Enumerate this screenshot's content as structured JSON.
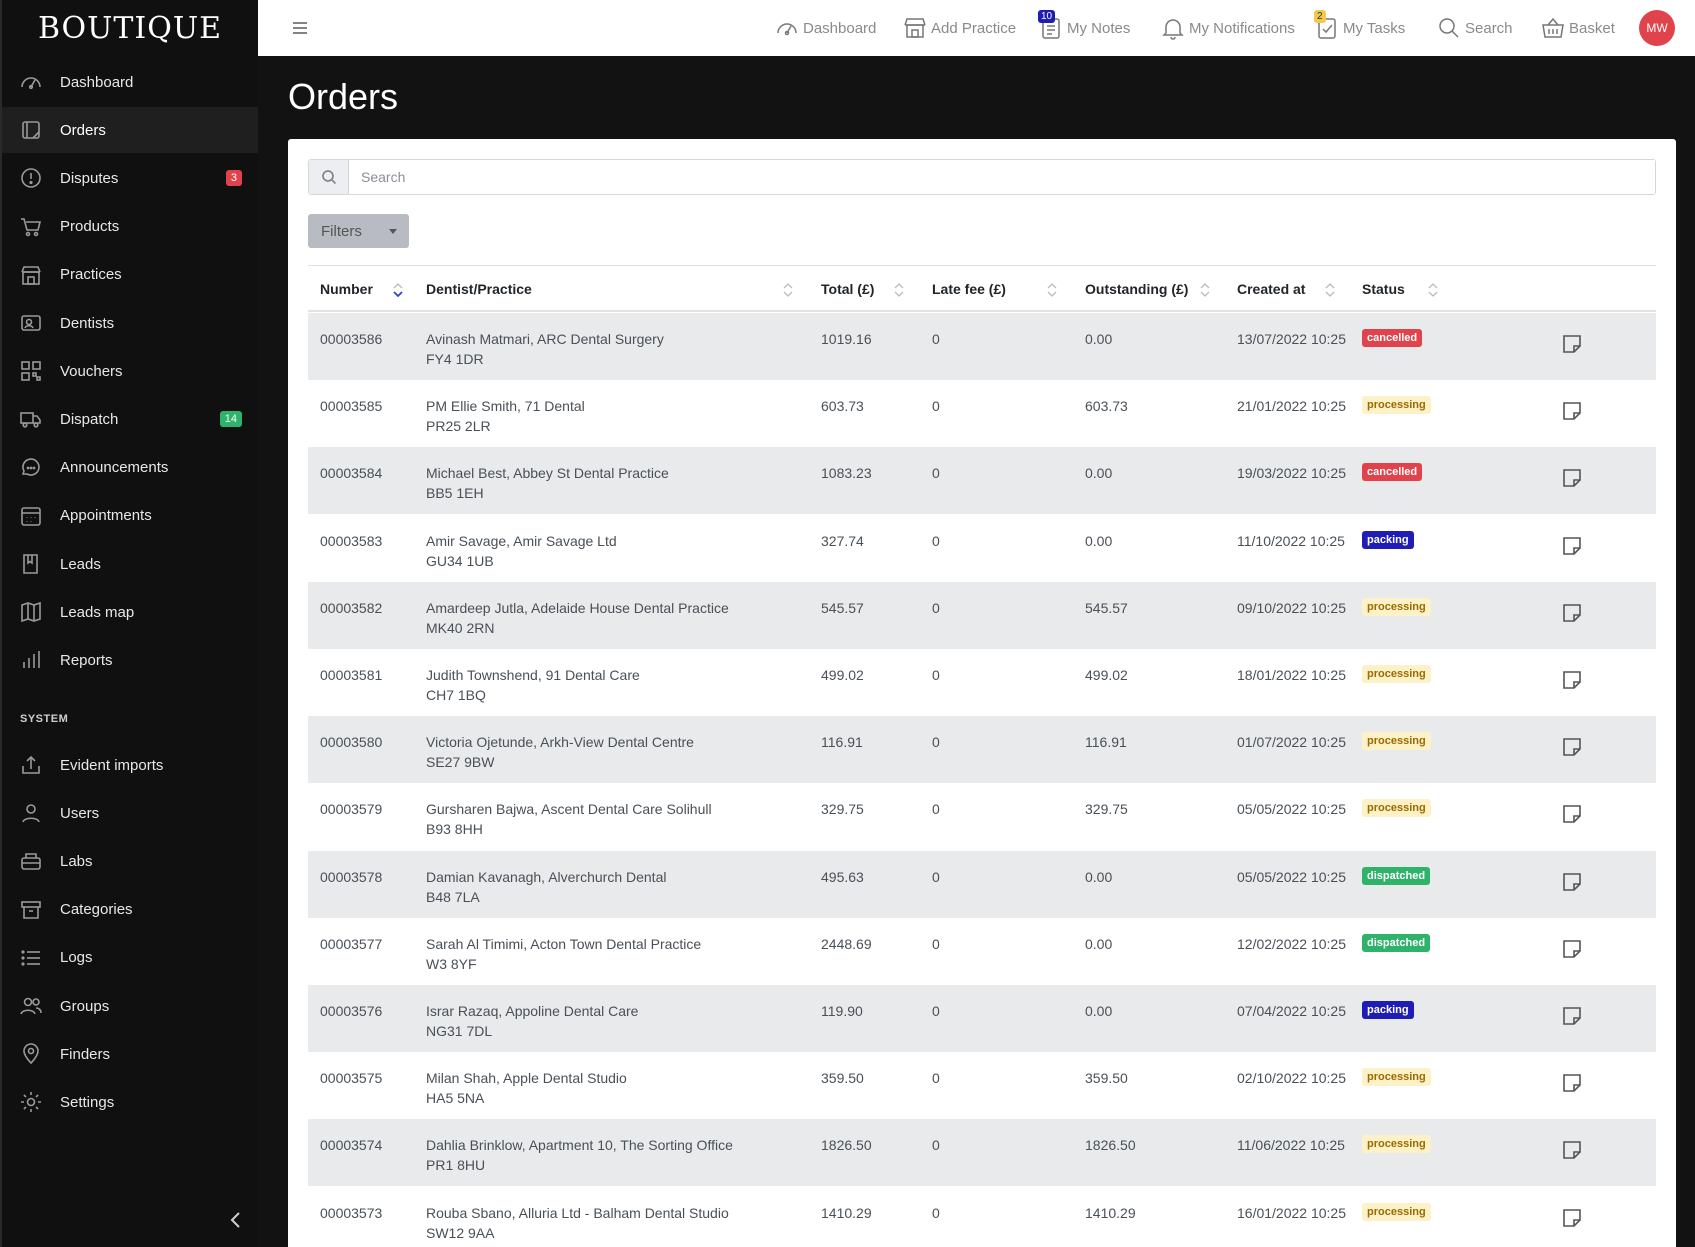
{
  "brand": "BOUTIQUE",
  "sidebar": {
    "items": [
      {
        "label": "Dashboard",
        "icon": "dashboard-icon"
      },
      {
        "label": "Orders",
        "icon": "orders-icon",
        "active": true
      },
      {
        "label": "Disputes",
        "icon": "disputes-icon",
        "badge": "3",
        "badge_color": "#e0434b"
      },
      {
        "label": "Products",
        "icon": "cart-icon"
      },
      {
        "label": "Practices",
        "icon": "store-icon"
      },
      {
        "label": "Dentists",
        "icon": "id-card-icon"
      },
      {
        "label": "Vouchers",
        "icon": "qr-code-icon"
      },
      {
        "label": "Dispatch",
        "icon": "truck-icon",
        "badge": "14",
        "badge_color": "#2fb36a"
      },
      {
        "label": "Announcements",
        "icon": "chat-icon"
      },
      {
        "label": "Appointments",
        "icon": "calendar-icon"
      },
      {
        "label": "Leads",
        "icon": "book-icon"
      },
      {
        "label": "Leads map",
        "icon": "map-icon"
      },
      {
        "label": "Reports",
        "icon": "bar-chart-icon"
      }
    ],
    "system_label": "SYSTEM",
    "system_items": [
      {
        "label": "Evident imports",
        "icon": "import-icon"
      },
      {
        "label": "Users",
        "icon": "user-icon"
      },
      {
        "label": "Labs",
        "icon": "lab-icon"
      },
      {
        "label": "Categories",
        "icon": "archive-icon"
      },
      {
        "label": "Logs",
        "icon": "list-icon"
      },
      {
        "label": "Groups",
        "icon": "group-icon"
      },
      {
        "label": "Finders",
        "icon": "location-pin-icon"
      },
      {
        "label": "Settings",
        "icon": "gear-icon"
      }
    ]
  },
  "topbar": {
    "dashboard": "Dashboard",
    "add_practice": "Add Practice",
    "my_notes": "My Notes",
    "my_notes_badge": "10",
    "my_notifications": "My Notifications",
    "my_tasks": "My Tasks",
    "my_tasks_badge": "2",
    "search": "Search",
    "basket": "Basket",
    "avatar_initials": "MW"
  },
  "page": {
    "title": "Orders",
    "search_placeholder": "Search",
    "filters_label": "Filters"
  },
  "table": {
    "columns": [
      "Number",
      "Dentist/Practice",
      "Total (£)",
      "Late fee (£)",
      "Outstanding (£)",
      "Created at",
      "Status"
    ],
    "rows": [
      {
        "number": "00003586",
        "name": "Avinash Matmari, ARC Dental Surgery",
        "postcode": "FY4 1DR",
        "total": "1019.16",
        "late_fee": "0",
        "outstanding": "0.00",
        "created": "13/07/2022 10:25",
        "status": "cancelled"
      },
      {
        "number": "00003585",
        "name": "PM Ellie Smith, 71 Dental",
        "postcode": "PR25 2LR",
        "total": "603.73",
        "late_fee": "0",
        "outstanding": "603.73",
        "created": "21/01/2022 10:25",
        "status": "processing"
      },
      {
        "number": "00003584",
        "name": "Michael Best, Abbey St Dental Practice",
        "postcode": "BB5 1EH",
        "total": "1083.23",
        "late_fee": "0",
        "outstanding": "0.00",
        "created": "19/03/2022 10:25",
        "status": "cancelled"
      },
      {
        "number": "00003583",
        "name": "Amir Savage, Amir Savage Ltd",
        "postcode": "GU34 1UB",
        "total": "327.74",
        "late_fee": "0",
        "outstanding": "0.00",
        "created": "11/10/2022 10:25",
        "status": "packing"
      },
      {
        "number": "00003582",
        "name": "Amardeep Jutla, Adelaide House Dental Practice",
        "postcode": "MK40 2RN",
        "total": "545.57",
        "late_fee": "0",
        "outstanding": "545.57",
        "created": "09/10/2022 10:25",
        "status": "processing"
      },
      {
        "number": "00003581",
        "name": "Judith Townshend, 91 Dental Care",
        "postcode": "CH7 1BQ",
        "total": "499.02",
        "late_fee": "0",
        "outstanding": "499.02",
        "created": "18/01/2022 10:25",
        "status": "processing"
      },
      {
        "number": "00003580",
        "name": "Victoria Ojetunde, Arkh-View Dental Centre",
        "postcode": "SE27 9BW",
        "total": "116.91",
        "late_fee": "0",
        "outstanding": "116.91",
        "created": "01/07/2022 10:25",
        "status": "processing"
      },
      {
        "number": "00003579",
        "name": "Gursharen Bajwa, Ascent Dental Care Solihull",
        "postcode": "B93 8HH",
        "total": "329.75",
        "late_fee": "0",
        "outstanding": "329.75",
        "created": "05/05/2022 10:25",
        "status": "processing"
      },
      {
        "number": "00003578",
        "name": "Damian Kavanagh, Alverchurch Dental",
        "postcode": "B48 7LA",
        "total": "495.63",
        "late_fee": "0",
        "outstanding": "0.00",
        "created": "05/05/2022 10:25",
        "status": "dispatched"
      },
      {
        "number": "00003577",
        "name": "Sarah Al Timimi, Acton Town Dental Practice",
        "postcode": "W3 8YF",
        "total": "2448.69",
        "late_fee": "0",
        "outstanding": "0.00",
        "created": "12/02/2022 10:25",
        "status": "dispatched"
      },
      {
        "number": "00003576",
        "name": "Israr Razaq, Appoline Dental Care",
        "postcode": "NG31 7DL",
        "total": "119.90",
        "late_fee": "0",
        "outstanding": "0.00",
        "created": "07/04/2022 10:25",
        "status": "packing"
      },
      {
        "number": "00003575",
        "name": "Milan Shah, Apple Dental Studio",
        "postcode": "HA5 5NA",
        "total": "359.50",
        "late_fee": "0",
        "outstanding": "359.50",
        "created": "02/10/2022 10:25",
        "status": "processing"
      },
      {
        "number": "00003574",
        "name": "Dahlia Brinklow, Apartment 10, The Sorting Office",
        "postcode": "PR1 8HU",
        "total": "1826.50",
        "late_fee": "0",
        "outstanding": "1826.50",
        "created": "11/06/2022 10:25",
        "status": "processing"
      },
      {
        "number": "00003573",
        "name": "Rouba Sbano, Alluria Ltd - Balham Dental Studio",
        "postcode": "SW12 9AA",
        "total": "1410.29",
        "late_fee": "0",
        "outstanding": "1410.29",
        "created": "16/01/2022 10:25",
        "status": "processing"
      }
    ]
  },
  "colors": {
    "cancelled": "#e0434b",
    "processing": "#fdf1c7",
    "packing": "#1f1db6",
    "dispatched": "#2fb36a"
  }
}
